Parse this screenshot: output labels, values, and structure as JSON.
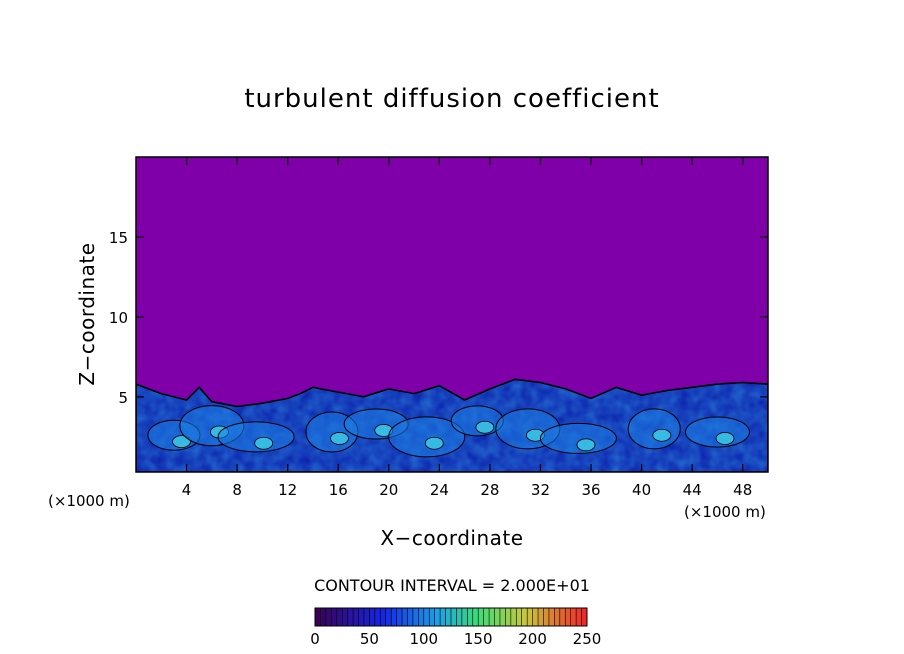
{
  "chart_data": {
    "type": "heatmap",
    "title": "turbulent diffusion coefficient",
    "xlabel": "X−coordinate",
    "ylabel": "Z−coordinate",
    "x_unit": "(×1000 m)",
    "x_unit_right": "(×1000 m)",
    "xlim": [
      0,
      50
    ],
    "ylim": [
      0.3,
      20
    ],
    "x_ticks": [
      4,
      8,
      12,
      16,
      20,
      24,
      28,
      32,
      36,
      40,
      44,
      48
    ],
    "y_ticks": [
      5,
      10,
      15
    ],
    "contour_interval_text": "CONTOUR INTERVAL = 2.000E+01",
    "colorbar": {
      "min": 0,
      "max": 250,
      "ticks": [
        0,
        50,
        100,
        150,
        200,
        250
      ]
    },
    "background_color": "#7f00a8",
    "boundary_layer_top_profile": {
      "x": [
        0,
        2,
        4,
        5,
        6,
        8,
        10,
        12,
        13,
        14,
        16,
        18,
        20,
        22,
        24,
        26,
        28,
        30,
        32,
        34,
        36,
        38,
        40,
        42,
        44,
        46,
        48,
        50
      ],
      "z": [
        5.8,
        5.2,
        4.8,
        5.6,
        4.7,
        4.4,
        4.6,
        4.9,
        5.2,
        5.6,
        5.3,
        5.0,
        5.5,
        5.2,
        5.7,
        4.8,
        5.5,
        6.1,
        5.9,
        5.5,
        4.9,
        5.6,
        5.1,
        5.4,
        5.6,
        5.8,
        5.9,
        5.8
      ]
    }
  },
  "colors": {
    "low": "#0a1aa8",
    "mid": "#1e7fe6",
    "high": "#44e0e8",
    "contour": "#000000"
  }
}
